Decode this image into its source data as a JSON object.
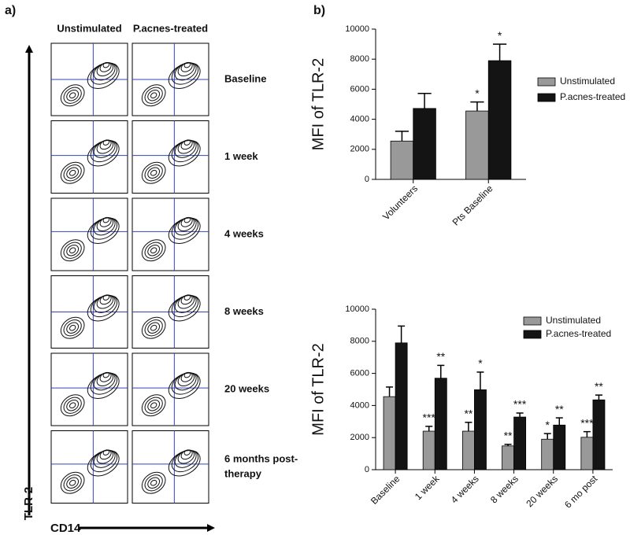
{
  "panel_labels": [
    "a)",
    "b)"
  ],
  "panel_a": {
    "column_headers": [
      "Unstimulated",
      "P.acnes-treated"
    ],
    "row_labels": [
      {
        "lines": [
          "Baseline"
        ]
      },
      {
        "lines": [
          "1 week"
        ]
      },
      {
        "lines": [
          "4 weeks"
        ]
      },
      {
        "lines": [
          "8 weeks"
        ]
      },
      {
        "lines": [
          "20 weeks"
        ]
      },
      {
        "lines": [
          "6 months post-",
          "therapy"
        ]
      }
    ],
    "y_axis_label": "TLR-2",
    "x_axis_label": "CD14"
  },
  "chart_data": [
    {
      "type": "bar",
      "y_label": "MFI of TLR-2",
      "categories": [
        "Volunteers",
        "Pts Baseline"
      ],
      "series": [
        {
          "name": "Unstimulated",
          "color": "#999999",
          "values": [
            2550,
            4550
          ],
          "errors": [
            650,
            600
          ],
          "stars": [
            null,
            "*"
          ]
        },
        {
          "name": "P.acnes-treated",
          "color": "#141414",
          "values": [
            4720,
            7900
          ],
          "errors": [
            1000,
            1100
          ],
          "stars": [
            null,
            "*"
          ]
        }
      ],
      "ylim": [
        0,
        10000
      ],
      "yticks": [
        0,
        2000,
        4000,
        6000,
        8000,
        10000
      ]
    },
    {
      "type": "bar",
      "y_label": "MFI of TLR-2",
      "categories": [
        "Baseline",
        "1 week",
        "4 weeks",
        "8 weeks",
        "20 weeks",
        "6 mo post"
      ],
      "series": [
        {
          "name": "Unstimulated",
          "color": "#999999",
          "values": [
            4550,
            2400,
            2400,
            1480,
            1900,
            2020
          ],
          "errors": [
            600,
            300,
            550,
            100,
            350,
            350
          ],
          "stars": [
            null,
            "***",
            "**",
            "**",
            "*",
            "***"
          ]
        },
        {
          "name": "P.acnes-treated",
          "color": "#141414",
          "values": [
            7900,
            5700,
            4980,
            3280,
            2780,
            4350
          ],
          "errors": [
            1050,
            800,
            1100,
            250,
            450,
            300
          ],
          "stars": [
            null,
            "**",
            "*",
            "***",
            "**",
            "**"
          ]
        }
      ],
      "ylim": [
        0,
        10000
      ],
      "yticks": [
        0,
        2000,
        4000,
        6000,
        8000,
        10000
      ]
    }
  ]
}
